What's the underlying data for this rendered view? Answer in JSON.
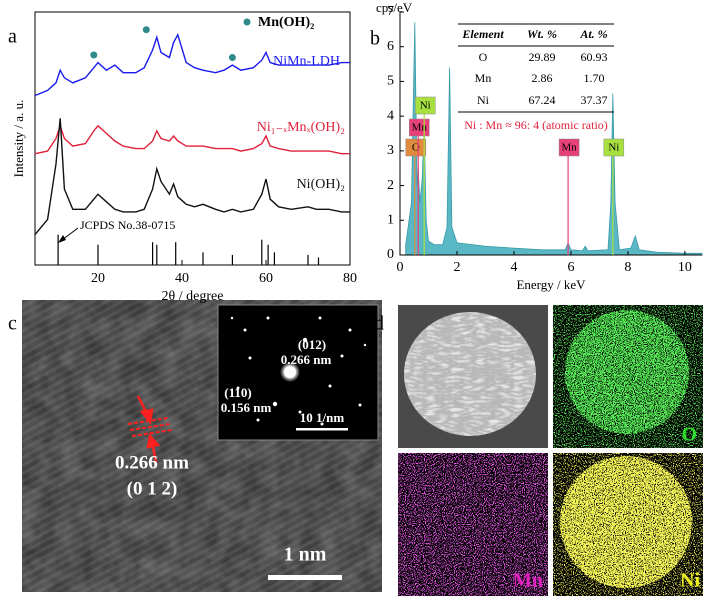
{
  "chart_data": [
    {
      "type": "line",
      "panel": "a",
      "xlabel": "2θ / degree",
      "ylabel": "Intensity / a. u.",
      "xlim": [
        5,
        80
      ],
      "xticks": [
        20,
        40,
        60,
        80
      ],
      "ylim": [
        0,
        100
      ],
      "x": [
        5,
        8,
        10,
        11,
        12,
        14,
        17,
        19,
        20,
        22,
        24,
        26,
        29,
        31,
        33,
        34,
        35,
        37,
        38,
        39,
        41,
        43,
        45,
        48,
        50,
        52,
        54,
        57,
        59,
        60,
        61,
        63,
        66,
        70,
        72,
        75,
        78,
        80
      ],
      "series": [
        {
          "name": "NiMn-LDH",
          "color": "#1a1aee",
          "values": [
            67,
            69,
            72,
            77,
            74,
            72,
            74,
            78,
            80,
            77,
            79,
            76,
            76,
            78,
            85,
            90,
            84,
            82,
            88,
            91,
            80,
            78,
            77,
            76,
            77,
            79,
            77,
            78,
            81,
            84,
            80,
            79,
            79,
            79,
            79,
            79,
            80,
            80
          ]
        },
        {
          "name": "Ni₁₋ₓMnₓ(OH)₂",
          "color": "#e0203a",
          "values": [
            44,
            45,
            50,
            55,
            50,
            47,
            48,
            53,
            55,
            52,
            49,
            47,
            46,
            46,
            49,
            53,
            50,
            49,
            51,
            49,
            47,
            47,
            47,
            46,
            46,
            46,
            45,
            46,
            48,
            51,
            47,
            46,
            45,
            45,
            45,
            45,
            44,
            44
          ]
        },
        {
          "name": "Ni(OH)₂",
          "color": "#111111",
          "values": [
            12,
            18,
            40,
            58,
            30,
            22,
            22,
            26,
            28,
            25,
            22,
            21,
            21,
            22,
            30,
            38,
            33,
            28,
            32,
            27,
            24,
            23,
            24,
            22,
            21,
            22,
            21,
            22,
            28,
            34,
            26,
            23,
            22,
            23,
            22,
            22,
            21,
            21
          ]
        }
      ],
      "markers": {
        "name": "Mn(OH)₂",
        "color": "#2e8b8b",
        "x": [
          19,
          31.5,
          52
        ],
        "values": [
          83,
          93,
          82
        ]
      },
      "reference": {
        "name": "JCPDS No.38-0715",
        "x": [
          10.5,
          20,
          33,
          34,
          38.5,
          45,
          52,
          59,
          60.5,
          62,
          70,
          72.5
        ],
        "values": [
          12,
          8,
          9,
          8,
          9,
          5,
          4,
          10,
          8,
          5,
          4,
          3
        ]
      }
    },
    {
      "type": "area",
      "panel": "b",
      "ylabel": "cps/eV",
      "xlabel": "Energy / keV",
      "xlim": [
        0,
        10.6
      ],
      "xticks": [
        0,
        2,
        4,
        6,
        8,
        10
      ],
      "ylim": [
        0,
        7
      ],
      "yticks": [
        0,
        1,
        2,
        3,
        4,
        5,
        6,
        7
      ],
      "color": "#5ab8c4",
      "x": [
        0.2,
        0.4,
        0.52,
        0.6,
        0.64,
        0.7,
        0.78,
        0.85,
        0.92,
        1.0,
        1.2,
        1.5,
        1.65,
        1.74,
        1.82,
        2.0,
        3,
        4,
        5,
        5.8,
        5.9,
        6.0,
        6.4,
        6.5,
        6.6,
        7.3,
        7.4,
        7.47,
        7.55,
        7.7,
        8.1,
        8.26,
        8.4,
        9,
        10,
        10.6
      ],
      "values": [
        0.3,
        1.5,
        6.7,
        2.0,
        2.5,
        1.5,
        2.2,
        3.7,
        1.0,
        0.4,
        0.3,
        0.3,
        0.8,
        5.4,
        0.8,
        0.35,
        0.25,
        0.2,
        0.15,
        0.15,
        0.35,
        0.15,
        0.12,
        0.25,
        0.12,
        0.15,
        1.5,
        4.65,
        1.5,
        0.15,
        0.2,
        0.55,
        0.15,
        0.08,
        0.05,
        0.05
      ],
      "element_lines": [
        {
          "label": "O",
          "x": 0.52,
          "color": "#e08a40"
        },
        {
          "label": "Mn",
          "x": 0.64,
          "color": "#e8407a"
        },
        {
          "label": "Ni",
          "x": 0.85,
          "color": "#a8e040"
        },
        {
          "label": "Mn",
          "x": 5.9,
          "color": "#e8407a"
        },
        {
          "label": "Ni",
          "x": 7.47,
          "color": "#a8e040"
        }
      ],
      "table": {
        "header": [
          "Element",
          "Wt. %",
          "At. %"
        ],
        "rows": [
          [
            "O",
            "29.89",
            "60.93"
          ],
          [
            "Mn",
            "2.86",
            "1.70"
          ],
          [
            "Ni",
            "67.24",
            "37.37"
          ]
        ]
      },
      "note": "Ni : Mn ≈ 96: 4  (atomic ratio)"
    }
  ],
  "panel_c": {
    "label": "c",
    "spacing": "0.266 nm",
    "plane": "(0 1 2)",
    "scale_bar": "1 nm",
    "inset": {
      "spot1_plane": "(012)",
      "spot1_spacing": "0.266 nm",
      "spot2_plane": "(110)",
      "spot2_spacing": "0.156 nm",
      "scale_bar": "10 1/nm"
    }
  },
  "panel_d": {
    "label": "d",
    "maps": [
      "O",
      "Mn",
      "Ni"
    ]
  }
}
